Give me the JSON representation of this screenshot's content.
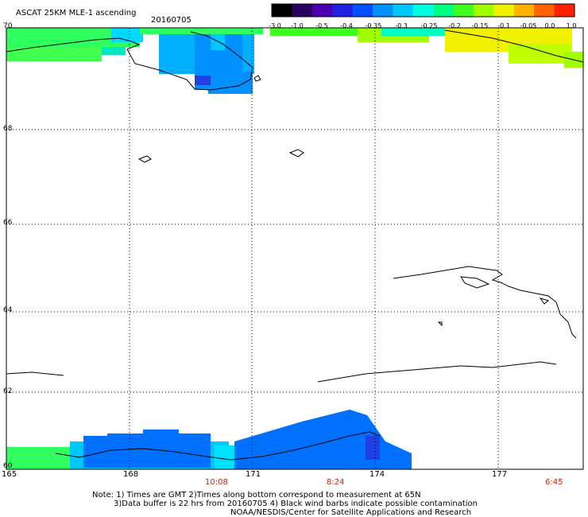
{
  "title": "ASCAT 25KM MLE-1 ascending",
  "date": "20160705",
  "colorbar": {
    "labels": [
      "-3.0",
      "-1.0",
      "-0.5",
      "-0.4",
      "-0.35",
      "-0.3",
      "-0.25",
      "-0.2",
      "-0.15",
      "-0.1",
      "-0.05",
      "0.0",
      "1.0"
    ],
    "colors": [
      "#000000",
      "#2a0060",
      "#4a00b0",
      "#2020e0",
      "#0050ff",
      "#0090ff",
      "#00c8ff",
      "#00ffe0",
      "#00ff80",
      "#40ff20",
      "#a0ff00",
      "#f0f000",
      "#ffb000",
      "#ff6000",
      "#ff2000"
    ]
  },
  "axes": {
    "lat_labels": [
      "70",
      "68",
      "66",
      "64",
      "62",
      "60"
    ],
    "lon_labels": [
      "165",
      "168",
      "171",
      "174",
      "177"
    ],
    "time_labels": [
      "10:08",
      "8:24",
      "6:45"
    ]
  },
  "notes": {
    "line1": "Note: 1) Times are GMT 2)Times along bottom correspond to measurement at 65N",
    "line2": "3)Data buffer is 22 hrs from 20160705 4) Black wind barbs indicate possible contamination",
    "line3": "NOAA/NESDIS/Center for Satellite Applications and Research"
  },
  "style": {
    "time_color": "#cc2200",
    "grid_color": "#000000"
  }
}
